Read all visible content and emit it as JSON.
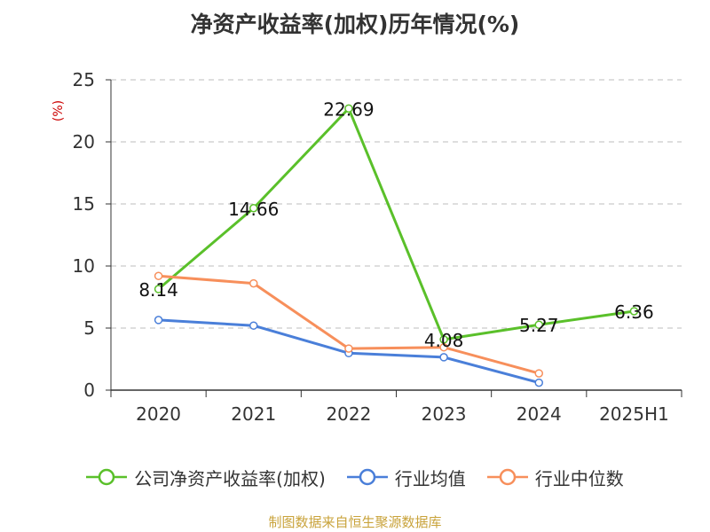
{
  "title": "净资产收益率(加权)历年情况(%)",
  "source_note": "制图数据来自恒生聚源数据库",
  "chart_data": {
    "type": "line",
    "title": "净资产收益率(加权)历年情况(%)",
    "ylabel": "(%)",
    "xlabel": "",
    "categories": [
      "2020",
      "2021",
      "2022",
      "2023",
      "2024",
      "2025H1"
    ],
    "ylim": [
      0,
      25
    ],
    "yticks": [
      0,
      5,
      10,
      15,
      20,
      25
    ],
    "grid": true,
    "legend_position": "bottom",
    "series": [
      {
        "name": "公司净资产收益率(加权)",
        "color": "#5ac02a",
        "values": [
          8.14,
          14.66,
          22.69,
          4.08,
          5.27,
          6.36
        ],
        "labels": [
          "8.14",
          "14.66",
          "22.69",
          "4.08",
          "5.27",
          "6.36"
        ]
      },
      {
        "name": "行业均值",
        "color": "#4a7fd9",
        "values": [
          5.65,
          5.2,
          2.98,
          2.65,
          0.6,
          null
        ]
      },
      {
        "name": "行业中位数",
        "color": "#f78f5b",
        "values": [
          9.2,
          8.6,
          3.35,
          3.45,
          1.35,
          null
        ]
      }
    ]
  }
}
